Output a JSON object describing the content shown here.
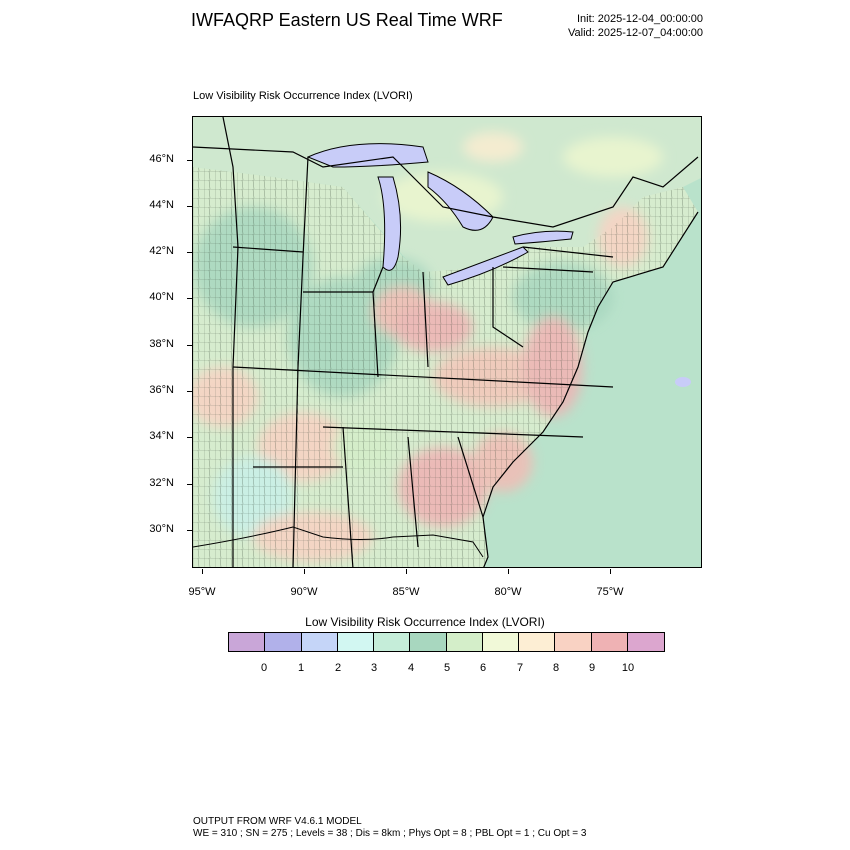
{
  "title": "IWFAQRP Eastern US Real Time WRF",
  "init": "Init: 2025-12-04_00:00:00",
  "valid": "Valid: 2025-12-07_04:00:00",
  "plot_subtitle": "Low Visibility Risk Occurrence Index   (LVORI)",
  "lat_labels": [
    "46°N",
    "44°N",
    "42°N",
    "40°N",
    "38°N",
    "36°N",
    "34°N",
    "32°N",
    "30°N"
  ],
  "lon_labels": [
    "95°W",
    "90°W",
    "85°W",
    "80°W",
    "75°W"
  ],
  "colorbar": {
    "title": "Low Visibility Risk Occurrence Index  (LVORI)",
    "labels": [
      "0",
      "1",
      "2",
      "3",
      "4",
      "5",
      "6",
      "7",
      "8",
      "9",
      "10"
    ],
    "colors": [
      "#c9a6d8",
      "#b1b1ea",
      "#c5d5f8",
      "#d2f7f2",
      "#c5edd9",
      "#a8d7bf",
      "#d4eec9",
      "#f1f9d8",
      "#fdeed4",
      "#f9d2c3",
      "#efb2b4",
      "#dca6cf"
    ]
  },
  "map": {
    "lake_color": "#c8ccf8",
    "ocean_color": "#b6e2c8",
    "land_base_color": "#d8edd0"
  },
  "footer": {
    "line1": "OUTPUT FROM WRF V4.6.1 MODEL",
    "line2": "WE = 310 ; SN = 275 ; Levels = 38 ; Dis = 8km ; Phys Opt = 8 ; PBL Opt = 1 ; Cu Opt = 3"
  }
}
